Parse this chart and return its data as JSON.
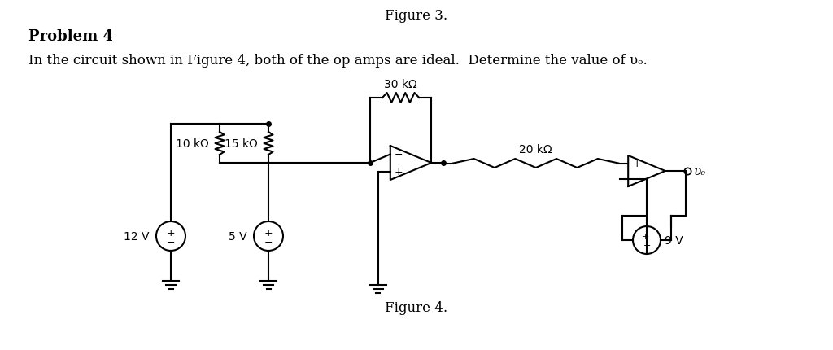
{
  "title_bold": "Problem 4",
  "title_normal": "In the circuit shown in Figure 4, both of the op amps are ideal.  Determine the value of υₒ.",
  "figure_caption": "Figure 4.",
  "figure_prev": "Figure 3.",
  "bg_color": "#ffffff",
  "line_color": "#000000",
  "font_size_title": 13,
  "font_size_body": 12,
  "font_size_label": 10,
  "labels": {
    "R1": "10 kΩ",
    "R2": "15 kΩ",
    "R3": "30 kΩ",
    "R4": "20 kΩ",
    "V1": "12 V",
    "V2": "5 V",
    "V3": "9 V",
    "Vo": "υₒ"
  }
}
